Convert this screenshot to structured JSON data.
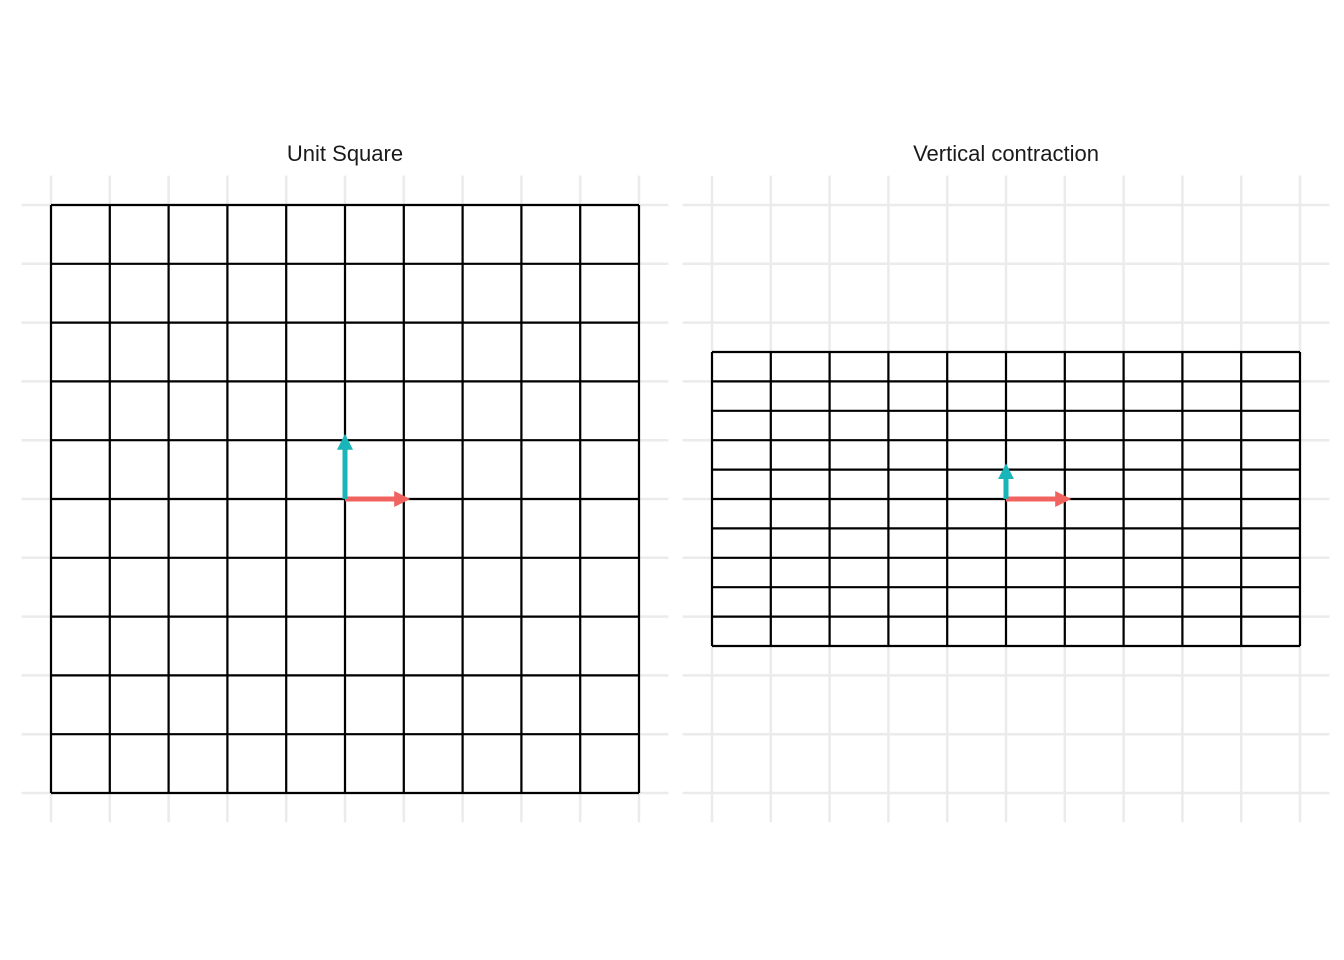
{
  "chart_data": [
    {
      "type": "line",
      "title": "Unit Square",
      "xlabel": "",
      "ylabel": "",
      "xlim": [
        -5,
        5
      ],
      "ylim": [
        -5,
        5
      ],
      "grid": true,
      "background_grid_color": "#ebebeb",
      "mesh_color": "#000000",
      "transform_matrix": [
        [
          1,
          0
        ],
        [
          0,
          1
        ]
      ],
      "mesh_x": [
        -5,
        -4,
        -3,
        -2,
        -1,
        0,
        1,
        2,
        3,
        4,
        5
      ],
      "mesh_y": [
        -5,
        -4,
        -3,
        -2,
        -1,
        0,
        1,
        2,
        3,
        4,
        5
      ],
      "basis_vectors": [
        {
          "from": [
            0,
            0
          ],
          "to": [
            1,
            0
          ],
          "color": "#f0635e"
        },
        {
          "from": [
            0,
            0
          ],
          "to": [
            0,
            1
          ],
          "color": "#1ab5b9"
        }
      ]
    },
    {
      "type": "line",
      "title": "Vertical contraction",
      "xlabel": "",
      "ylabel": "",
      "xlim": [
        -5,
        5
      ],
      "ylim": [
        -5,
        5
      ],
      "grid": true,
      "background_grid_color": "#ebebeb",
      "mesh_color": "#000000",
      "transform_matrix": [
        [
          1,
          0
        ],
        [
          0,
          0.5
        ]
      ],
      "mesh_x": [
        -5,
        -4,
        -3,
        -2,
        -1,
        0,
        1,
        2,
        3,
        4,
        5
      ],
      "mesh_y": [
        -2.5,
        -2,
        -1.5,
        -1,
        -0.5,
        0,
        0.5,
        1,
        1.5,
        2,
        2.5
      ],
      "basis_vectors": [
        {
          "from": [
            0,
            0
          ],
          "to": [
            1,
            0
          ],
          "color": "#f0635e"
        },
        {
          "from": [
            0,
            0
          ],
          "to": [
            0,
            0.5
          ],
          "color": "#1ab5b9"
        }
      ]
    }
  ]
}
